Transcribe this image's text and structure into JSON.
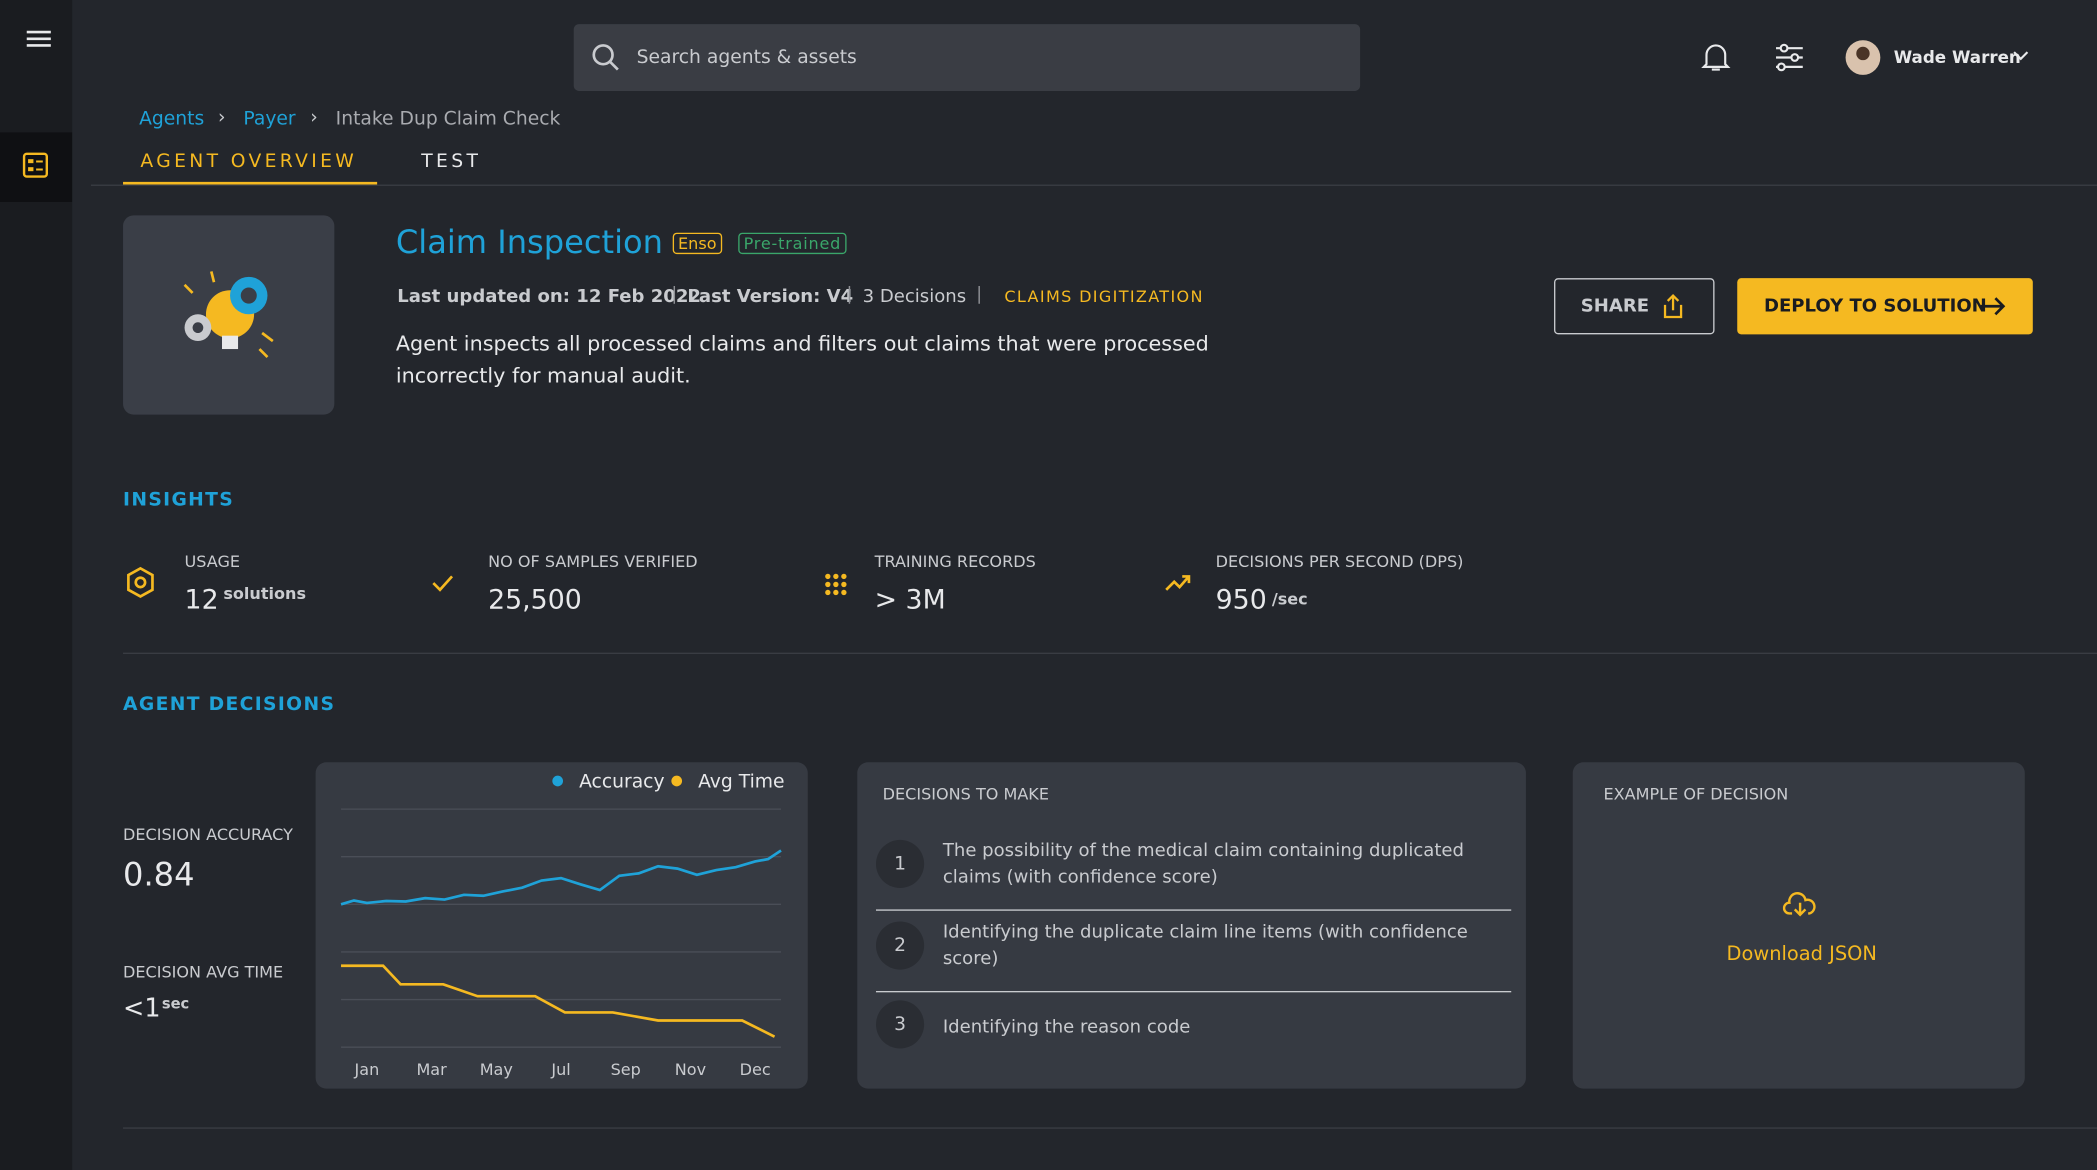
{
  "header": {
    "search_placeholder": "Search agents & assets",
    "user_name": "Wade Warren"
  },
  "breadcrumb": [
    "Agents",
    "Payer",
    "Intake Dup Claim Check"
  ],
  "tabs": [
    "AGENT OVERVIEW",
    "TEST"
  ],
  "agent": {
    "title": "Claim Inspection",
    "badges": [
      "Enso",
      "Pre-trained"
    ],
    "last_updated": "Last updated on: 12 Feb 2022",
    "last_version": "Last Version: V4",
    "decisions": "3 Decisions",
    "category": "CLAIMS DIGITIZATION",
    "description": "Agent inspects all processed claims and filters out claims that were processed incorrectly for manual audit.",
    "share": "SHARE",
    "deploy": "DEPLOY TO SOLUTION"
  },
  "insights": {
    "title": "INSIGHTS",
    "items": [
      {
        "label": "USAGE",
        "value": "12",
        "unit": "solutions"
      },
      {
        "label": "NO OF SAMPLES VERIFIED",
        "value": "25,500"
      },
      {
        "label": "TRAINING RECORDS",
        "value": "> 3M"
      },
      {
        "label": "DECISIONS PER SECOND (DPS)",
        "value": "950",
        "unit": "/sec"
      }
    ]
  },
  "agent_decisions": {
    "title": "AGENT DECISIONS",
    "accuracy_label": "DECISION ACCURACY",
    "accuracy_value": "0.84",
    "avg_time_label": "DECISION AVG TIME",
    "avg_time_value": "<1",
    "avg_time_unit": "sec"
  },
  "chart_data": {
    "type": "line",
    "xlim": [
      -0.4,
      6.4
    ],
    "ylim": [
      0,
      5.0
    ],
    "yticks": [
      0,
      1,
      2,
      3,
      4,
      5
    ],
    "grid": true,
    "xticks": [
      {
        "value": 0,
        "label": "Jan"
      },
      {
        "value": 1,
        "label": "Mar"
      },
      {
        "value": 2,
        "label": "May"
      },
      {
        "value": 3,
        "label": "Jul"
      },
      {
        "value": 4,
        "label": "Sep"
      },
      {
        "value": 5,
        "label": "Nov"
      },
      {
        "value": 6,
        "label": "Dec"
      }
    ],
    "series": [
      {
        "name": "Accuracy",
        "color": "#1fa2d8",
        "x": [
          -0.4,
          -0.2,
          0,
          0.3,
          0.6,
          0.9,
          1.2,
          1.5,
          1.8,
          2.1,
          2.4,
          2.7,
          3.0,
          3.3,
          3.6,
          3.9,
          4.2,
          4.5,
          4.8,
          5.1,
          5.4,
          5.7,
          6.0,
          6.2,
          6.4
        ],
        "values": [
          3.0,
          3.08,
          3.03,
          3.07,
          3.06,
          3.13,
          3.1,
          3.2,
          3.18,
          3.27,
          3.35,
          3.5,
          3.55,
          3.42,
          3.3,
          3.6,
          3.65,
          3.8,
          3.75,
          3.62,
          3.72,
          3.78,
          3.9,
          3.95,
          4.13
        ]
      },
      {
        "name": "Avg Time",
        "color": "#f5b921",
        "x": [
          -0.4,
          0.25,
          0.52,
          1.18,
          1.71,
          2.6,
          3.06,
          3.8,
          4.5,
          5.8,
          6.3
        ],
        "values": [
          1.71,
          1.71,
          1.32,
          1.32,
          1.07,
          1.07,
          0.73,
          0.73,
          0.56,
          0.56,
          0.22
        ]
      }
    ]
  },
  "decisions_to_make": {
    "title": "DECISIONS TO MAKE",
    "items": [
      {
        "n": "1",
        "text": "The possibility of the medical claim containing duplicated claims  (with confidence score)"
      },
      {
        "n": "2",
        "text": "Identifying the duplicate claim line items (with confidence score)"
      },
      {
        "n": "3",
        "text": "Identifying the reason code"
      }
    ]
  },
  "example": {
    "title": "EXAMPLE OF DECISION",
    "download": "Download JSON"
  }
}
